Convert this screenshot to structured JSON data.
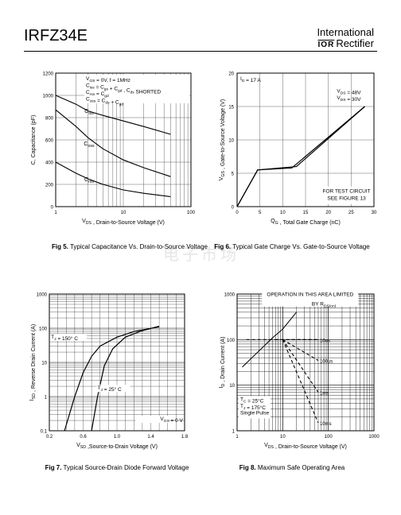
{
  "header": {
    "part_number": "IRFZ34E",
    "brand_line1": "International",
    "brand_logo": "IOR",
    "brand_line2": "Rectifier"
  },
  "watermark": "电子市场",
  "captions": [
    {
      "fig": "Fig 5.",
      "text": "Typical Capacitance Vs. Drain-to-Source Voltage"
    },
    {
      "fig": "Fig 6.",
      "text": "Typical Gate Charge Vs. Gate-to-Source Voltage"
    },
    {
      "fig": "Fig 7.",
      "text": "Typical Source-Drain Diode Forward Voltage"
    },
    {
      "fig": "Fig 8.",
      "text": "Maximum Safe Operating Area"
    }
  ],
  "chart_data": [
    {
      "type": "line",
      "xlabel": "V_DS , Drain-to-Source Voltage (V)",
      "ylabel": "C, Capacitance (pF)",
      "x_scale": "log",
      "xlim": [
        1,
        100
      ],
      "ylim": [
        0,
        1200
      ],
      "x_ticks": [
        "1",
        "10",
        "100"
      ],
      "y_ticks": [
        "0",
        "200",
        "400",
        "600",
        "800",
        "1000",
        "1200"
      ],
      "annotation": [
        "V_GS = 0V,    f = 1MHz",
        "C_iss = C_gs + C_gd , C_ds  SHORTED",
        "C_rss = C_gd",
        "C_oss = C_ds + C_gd"
      ],
      "series": [
        {
          "name": "C_iss",
          "x": [
            1,
            2,
            3,
            5,
            10,
            20,
            50
          ],
          "y": [
            1000,
            920,
            860,
            820,
            770,
            720,
            650
          ]
        },
        {
          "name": "C_oss",
          "x": [
            1,
            2,
            3,
            5,
            10,
            20,
            50
          ],
          "y": [
            870,
            720,
            620,
            520,
            420,
            350,
            270
          ]
        },
        {
          "name": "C_rss",
          "x": [
            1,
            2,
            3,
            5,
            10,
            20,
            50
          ],
          "y": [
            400,
            300,
            250,
            200,
            150,
            120,
            90
          ]
        }
      ]
    },
    {
      "type": "line",
      "xlabel": "Q_G , Total Gate Charge (nC)",
      "ylabel": "V_GS , Gate-to-Source Voltage (V)",
      "xlim": [
        0,
        30
      ],
      "ylim": [
        0,
        20
      ],
      "x_ticks": [
        "0",
        "5",
        "10",
        "15",
        "20",
        "25",
        "30"
      ],
      "y_ticks": [
        "0",
        "5",
        "10",
        "15",
        "20"
      ],
      "annotations": [
        "I_D = 17 A",
        "FOR TEST CIRCUIT",
        "SEE FIGURE 13"
      ],
      "series": [
        {
          "name": "V_DS = 48V",
          "x": [
            0,
            4.5,
            13,
            28
          ],
          "y": [
            0,
            5.5,
            6,
            15
          ]
        },
        {
          "name": "V_DS = 30V",
          "x": [
            0,
            4.5,
            12,
            28
          ],
          "y": [
            0,
            5.5,
            5.8,
            15
          ]
        }
      ]
    },
    {
      "type": "line",
      "xlabel": "V_SD ,Source-to-Drain Voltage (V)",
      "ylabel": "I_SD , Reverse Drain Current (A)",
      "y_scale": "log",
      "xlim": [
        0.2,
        1.8
      ],
      "ylim": [
        0.1,
        1000
      ],
      "x_ticks": [
        "0.2",
        "0.6",
        "1.0",
        "1.4",
        "1.8"
      ],
      "y_ticks": [
        "0.1",
        "1",
        "10",
        "100",
        "1000"
      ],
      "annotations": [
        "V_GS = 0 V"
      ],
      "series": [
        {
          "name": "T_J = 150° C",
          "x": [
            0.38,
            0.5,
            0.6,
            0.7,
            0.8,
            1.0,
            1.2,
            1.5
          ],
          "y": [
            0.1,
            1,
            5,
            15,
            30,
            55,
            80,
            110
          ]
        },
        {
          "name": "T_J = 25° C",
          "x": [
            0.7,
            0.77,
            0.85,
            0.95,
            1.1,
            1.3,
            1.5
          ],
          "y": [
            0.1,
            1,
            8,
            25,
            55,
            85,
            115
          ]
        }
      ]
    },
    {
      "type": "line",
      "xlabel": "V_DS , Drain-to-Source Voltage (V)",
      "ylabel": "I_D , Drain Current (A)",
      "x_scale": "log",
      "y_scale": "log",
      "xlim": [
        1,
        1000
      ],
      "ylim": [
        1,
        1000
      ],
      "x_ticks": [
        "1",
        "10",
        "100",
        "1000"
      ],
      "y_ticks": [
        "1",
        "10",
        "100",
        "1000"
      ],
      "annotations": [
        "OPERATION IN THIS AREA LIMITED",
        "BY R_DS(on)",
        "T_C = 25°C",
        "T_J = 175°C",
        "Single Pulse"
      ],
      "series": [
        {
          "name": "10us",
          "x": [
            7,
            60
          ],
          "y": [
            100,
            100
          ]
        },
        {
          "name": "100us",
          "x": [
            10,
            60
          ],
          "y": [
            100,
            35
          ]
        },
        {
          "name": "1ms",
          "x": [
            10,
            60
          ],
          "y": [
            100,
            7
          ]
        },
        {
          "name": "10ms",
          "x": [
            10,
            60
          ],
          "y": [
            100,
            1.5
          ]
        }
      ]
    }
  ]
}
